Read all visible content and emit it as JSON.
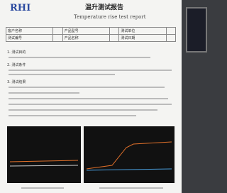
{
  "header": {
    "logo": "RHI",
    "title": "温升测试报告",
    "subtitle": "Temperature rise test report"
  },
  "table": {
    "rows": [
      [
        "客户名称",
        "产品型号",
        "测试单位"
      ],
      [
        "测试编号",
        "产品名称",
        "测试日期"
      ]
    ]
  },
  "sections": [
    "1. 测试目的",
    "2. 测试条件",
    "3. 测试结果"
  ]
}
